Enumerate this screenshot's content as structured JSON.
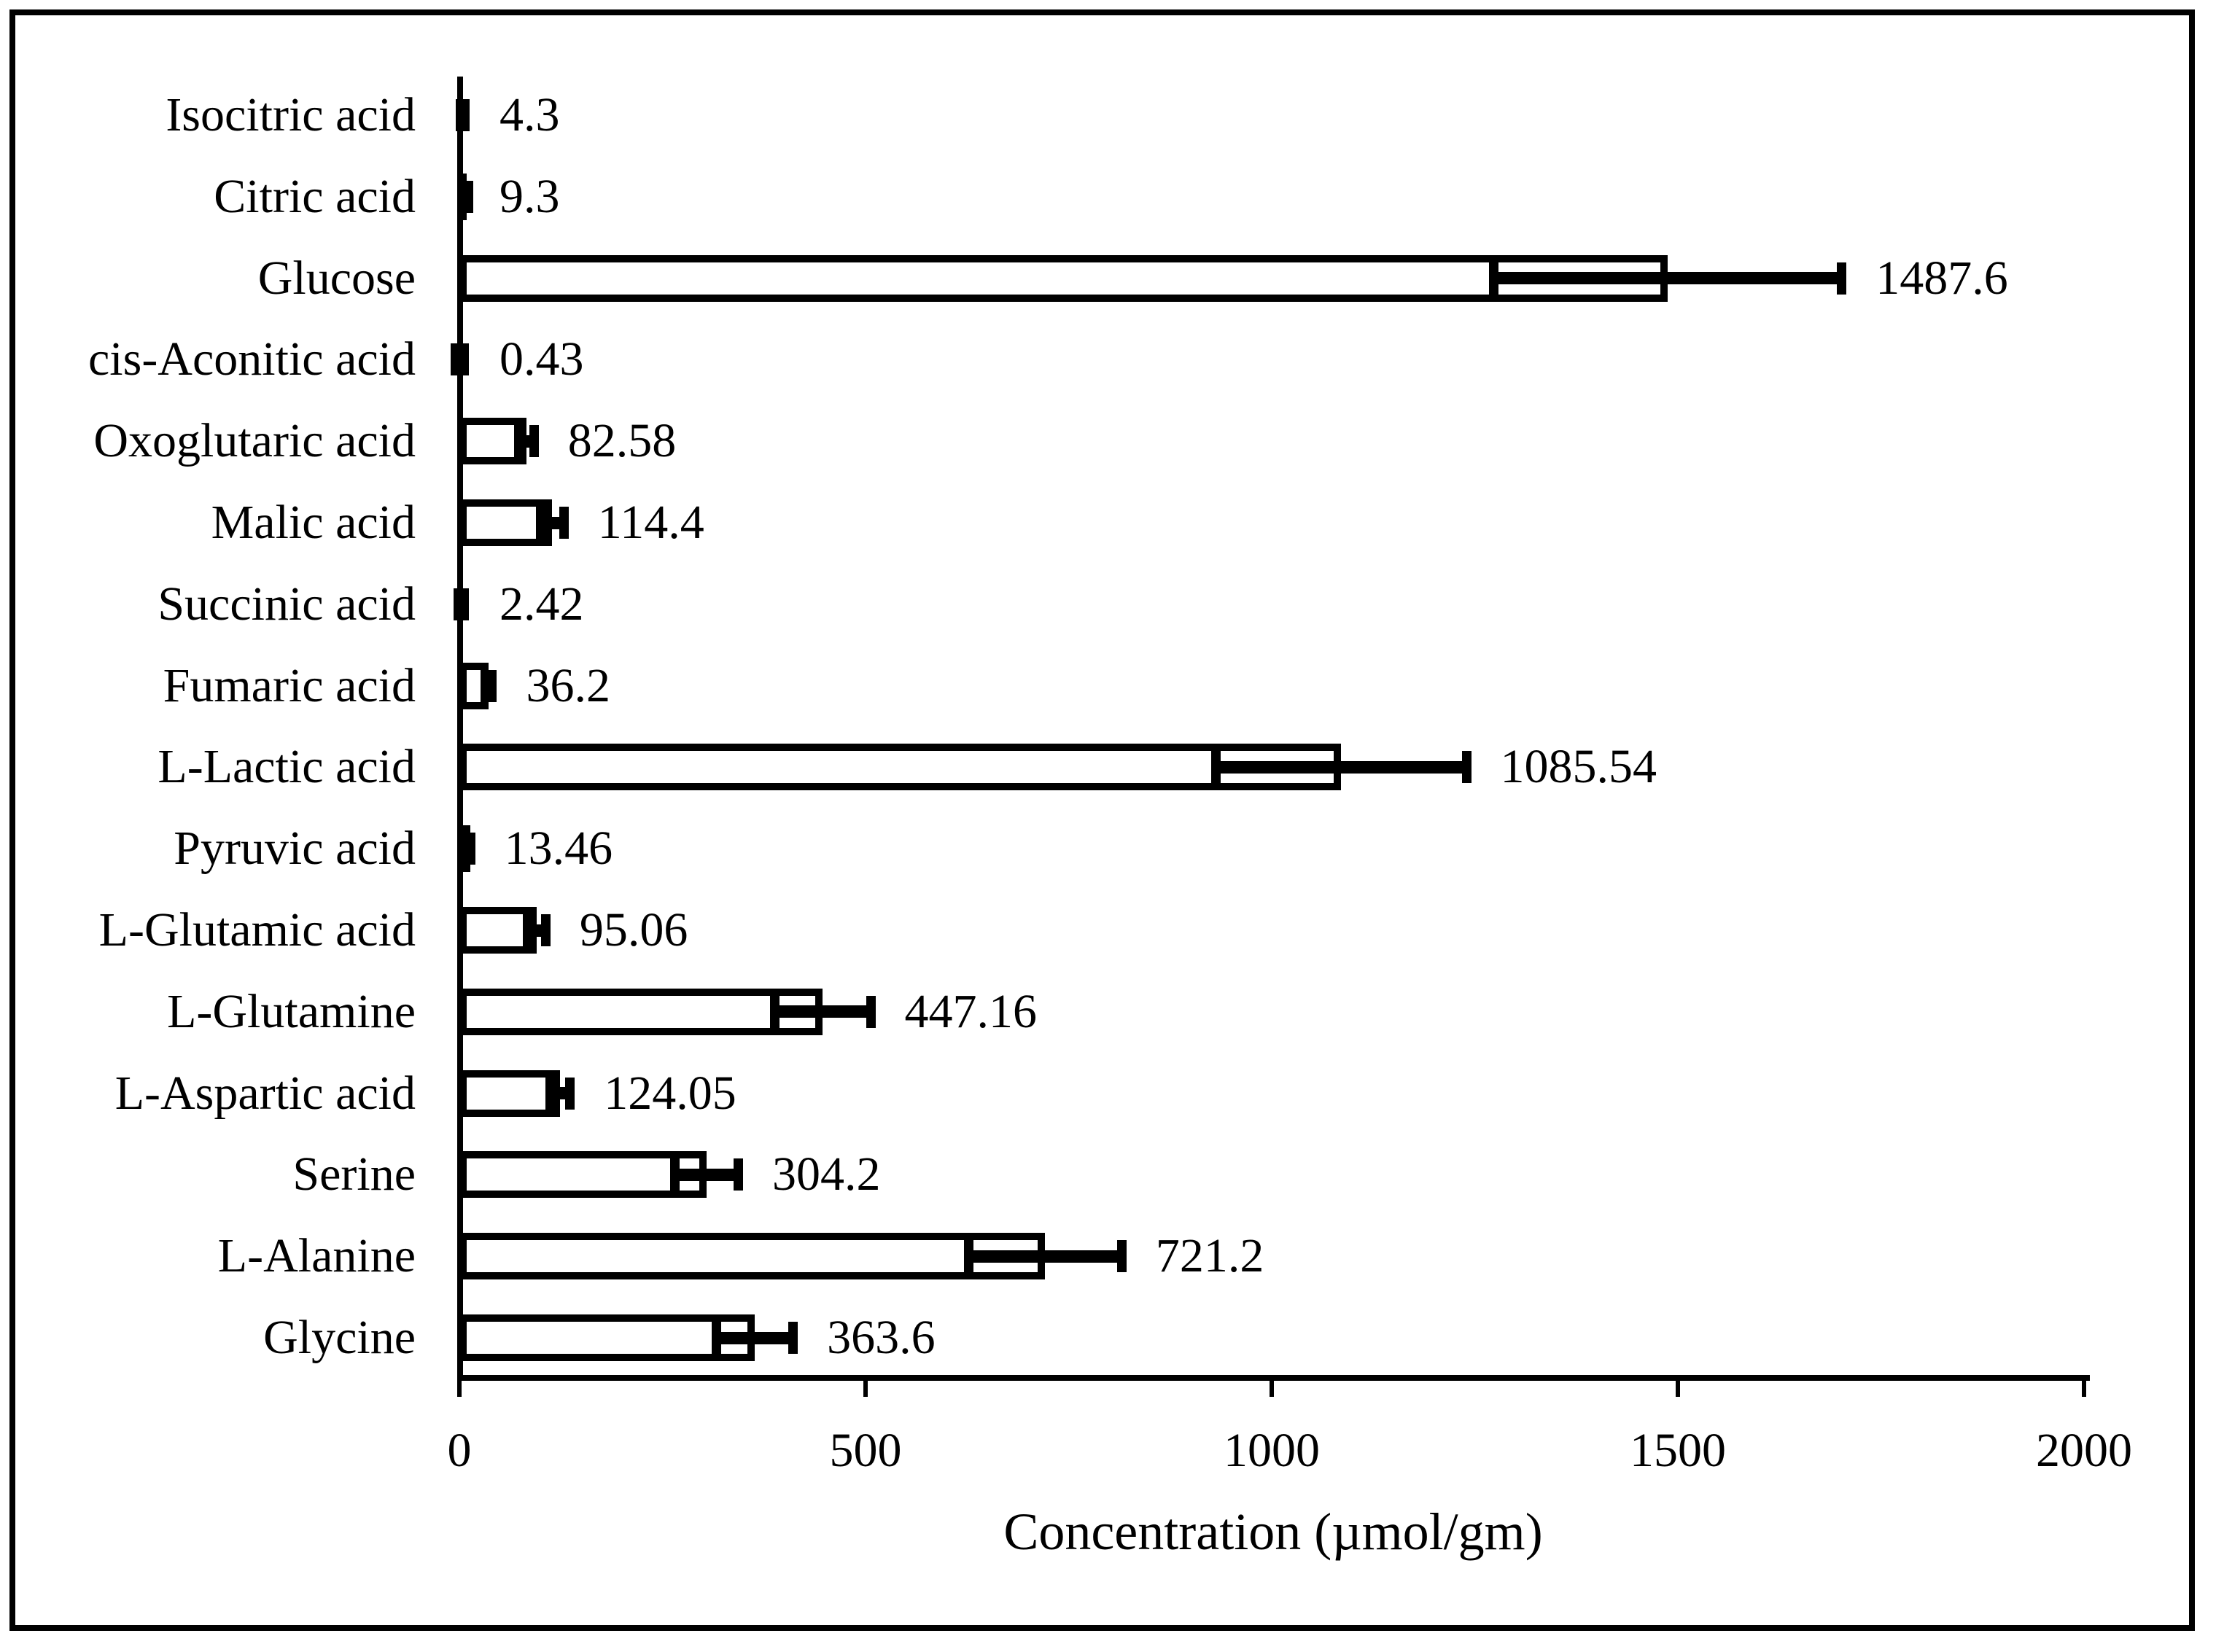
{
  "figure": {
    "background": "#ffffff",
    "frame_color": "#000000",
    "ink_color": "#000000"
  },
  "chart_data": {
    "type": "bar",
    "orientation": "horizontal",
    "title": "",
    "xlabel": "Concentration (µmol/gm)",
    "ylabel": "",
    "xlim": [
      0,
      2000
    ],
    "xticks": [
      0,
      500,
      1000,
      1500,
      2000
    ],
    "xtick_labels": [
      "0",
      "500",
      "1000",
      "1500",
      "2000"
    ],
    "grid": false,
    "legend": "none",
    "bar_fill": "#ffffff",
    "bar_border": "#000000",
    "error_bar_color": "#000000",
    "categories": [
      "Isocitric acid",
      "Citric acid",
      "Glucose",
      "cis-Aconitic acid",
      "Oxoglutaric acid",
      "Malic acid",
      "Succinic acid",
      "Fumaric acid",
      "L-Lactic acid",
      "Pyruvic acid",
      "L-Glutamic acid",
      "L-Glutamine",
      "L-Aspartic acid",
      "Serine",
      "L-Alanine",
      "Glycine"
    ],
    "values": [
      4.3,
      9.3,
      1487.6,
      0.43,
      82.58,
      114.4,
      2.42,
      36.2,
      1085.54,
      13.46,
      95.06,
      447.16,
      124.05,
      304.2,
      721.2,
      363.6
    ],
    "value_labels": [
      "4.3",
      "9.3",
      "1487.6",
      "0.43",
      "82.58",
      "114.4",
      "2.42",
      "36.2",
      "1085.54",
      "13.46",
      "95.06",
      "447.16",
      "124.05",
      "304.2",
      "721.2",
      "363.6"
    ],
    "error": [
      3,
      4,
      220,
      0.4,
      15,
      20,
      2,
      10,
      160,
      6,
      17,
      65,
      18,
      45,
      100,
      53
    ]
  }
}
